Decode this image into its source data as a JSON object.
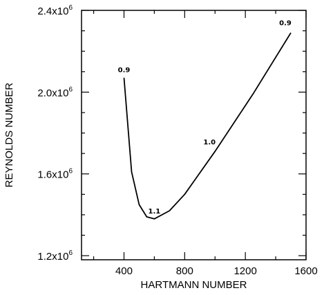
{
  "chart_data": {
    "type": "line",
    "xlabel": "HARTMANN NUMBER",
    "ylabel": "REYNOLDS NUMBER",
    "xlim": [
      120,
      1600
    ],
    "ylim": [
      1180000,
      2400000
    ],
    "x_ticks": [
      {
        "value": 400,
        "label": "400"
      },
      {
        "value": 800,
        "label": "800"
      },
      {
        "value": 1200,
        "label": "1200"
      },
      {
        "value": 1600,
        "label": "1600"
      }
    ],
    "y_ticks": [
      {
        "value": 1200000,
        "mantissa": "1.2",
        "base": "x10",
        "exp": "6"
      },
      {
        "value": 1600000,
        "mantissa": "1.6",
        "base": "x10",
        "exp": "6"
      },
      {
        "value": 2000000,
        "mantissa": "2.0",
        "base": "x10",
        "exp": "6"
      },
      {
        "value": 2400000,
        "mantissa": "2.4",
        "base": "x10",
        "exp": "6"
      }
    ],
    "x_minor_step": 200,
    "y_minor_step": 100000,
    "grid": false,
    "series": [
      {
        "x": [
          400,
          450,
          500,
          550,
          600,
          700,
          800,
          1000,
          1250,
          1500
        ],
        "y": [
          2070000,
          1610000,
          1450000,
          1390000,
          1380000,
          1420000,
          1500000,
          1710000,
          1990000,
          2290000
        ]
      }
    ],
    "annotations": [
      {
        "text": "0.9",
        "x": 400,
        "y": 2070000
      },
      {
        "text": "1.1",
        "x": 600,
        "y": 1380000
      },
      {
        "text": "1.0",
        "x": 1000,
        "y": 1710000
      },
      {
        "text": "0.9",
        "x": 1500,
        "y": 2290000
      }
    ]
  }
}
